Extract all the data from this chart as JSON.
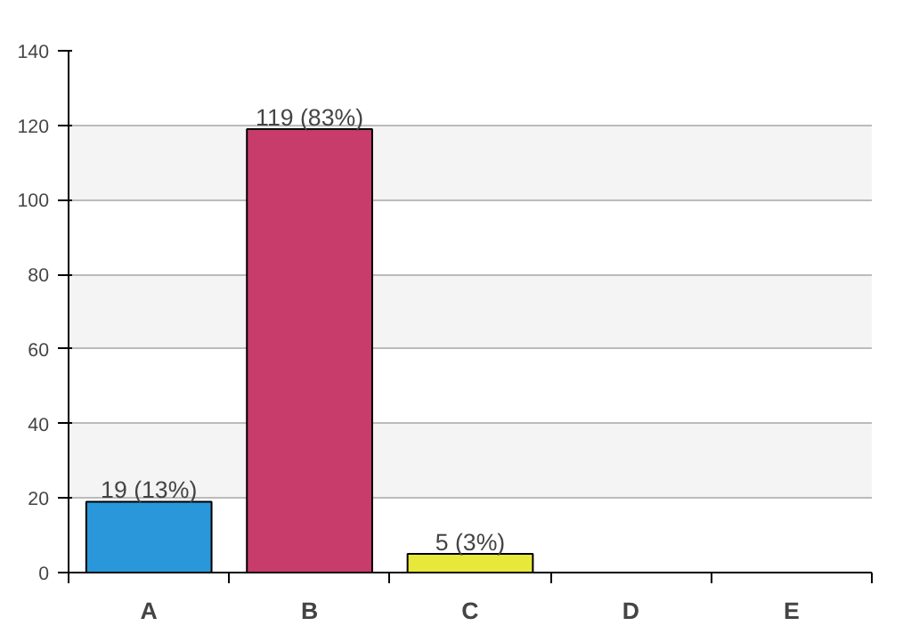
{
  "chart_data": {
    "type": "bar",
    "categories": [
      "A",
      "B",
      "C",
      "D",
      "E"
    ],
    "values": [
      19,
      119,
      5,
      0,
      0
    ],
    "colors": [
      "#2a97db",
      "#c83c6b",
      "#e8e83a",
      "#000000",
      "#000000"
    ],
    "value_labels": [
      "19 (13%)",
      "119 (83%)",
      "5 (3%)",
      null,
      null
    ],
    "ylim": [
      0,
      140
    ],
    "yticks": [
      0,
      20,
      40,
      60,
      80,
      100,
      120,
      140
    ],
    "grid": "y"
  }
}
